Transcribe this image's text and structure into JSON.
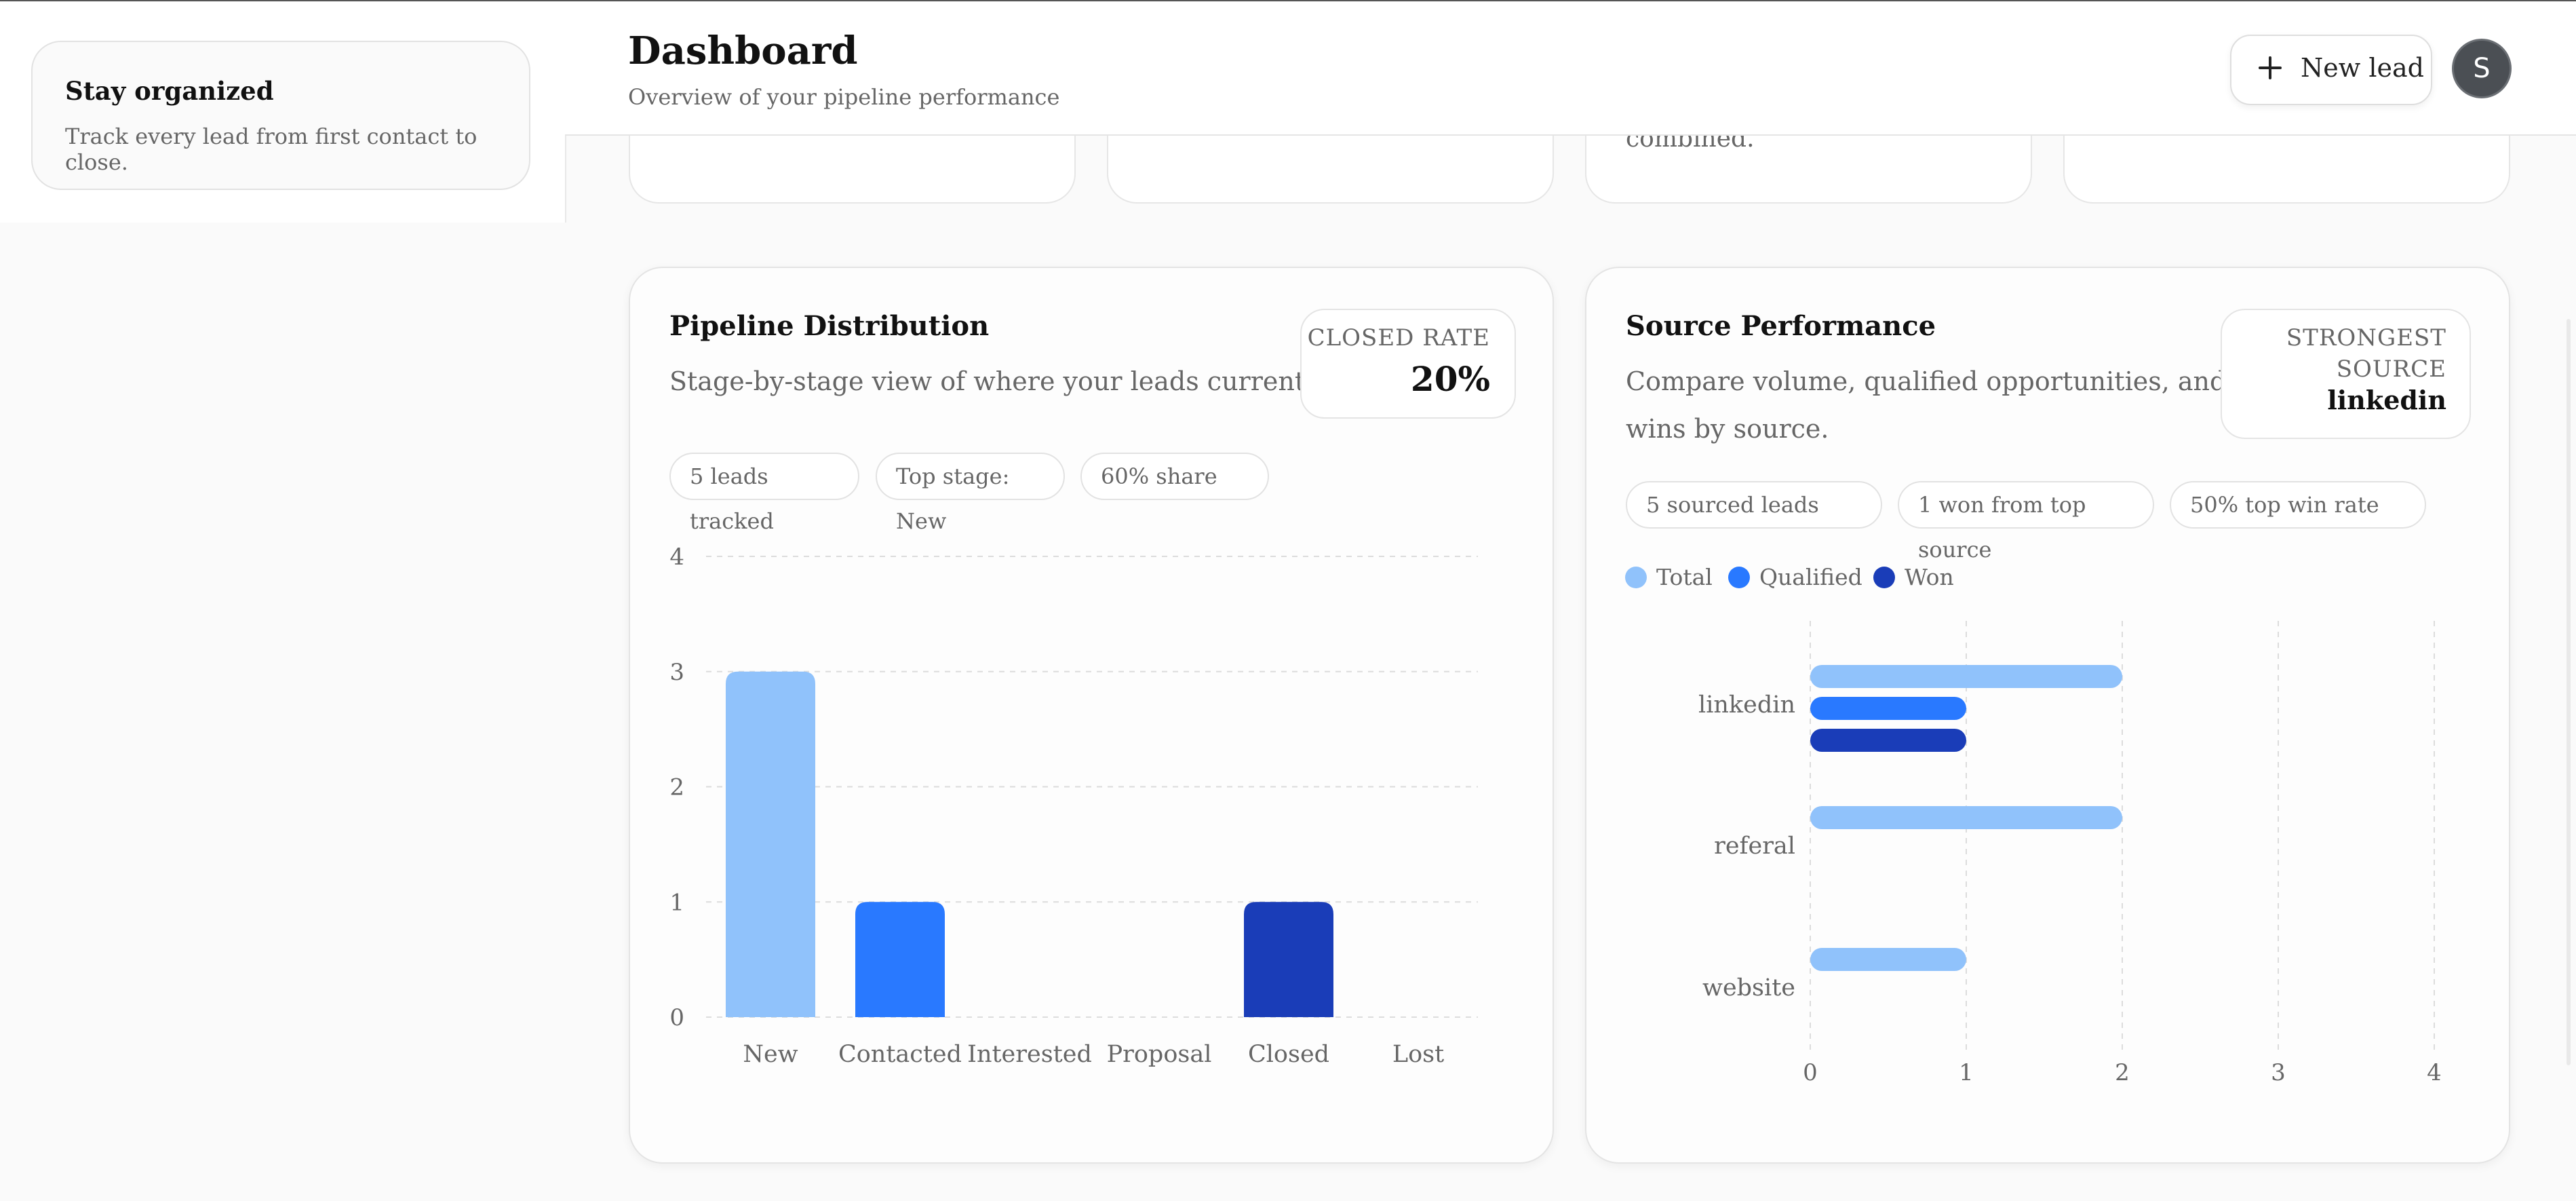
{
  "sidebar": {
    "card": {
      "title": "Stay organized",
      "subtitle": "Track every lead from first contact to close."
    }
  },
  "header": {
    "title": "Dashboard",
    "subtitle": "Overview of your pipeline performance",
    "new_lead_label": "New lead",
    "avatar_initial": "S"
  },
  "stat_cards": {
    "third_fragment": "combined."
  },
  "pipeline": {
    "title": "Pipeline Distribution",
    "subtitle": "Stage-by-stage view of where your leads currently sit.",
    "stat_label": "CLOSED RATE",
    "stat_value": "20%",
    "chips": [
      "5 leads tracked",
      "Top stage: New",
      "60% share"
    ]
  },
  "source": {
    "title": "Source Performance",
    "subtitle_line1": "Compare volume, qualified opportunities, and",
    "subtitle_line2": "wins by source.",
    "stat_label_line1": "STRONGEST",
    "stat_label_line2": "SOURCE",
    "stat_value": "linkedin",
    "chips": [
      "5 sourced leads",
      "1 won from top source",
      "50% top win rate"
    ],
    "legend": [
      "Total",
      "Qualified",
      "Won"
    ]
  },
  "colors": {
    "light_blue": "#90c2fb",
    "mid_blue": "#2979ff",
    "dark_blue": "#1a3db8"
  },
  "chart_data": [
    {
      "type": "bar",
      "title": "Pipeline Distribution",
      "categories": [
        "New",
        "Contacted",
        "Interested",
        "Proposal",
        "Closed",
        "Lost"
      ],
      "values": [
        3,
        1,
        0,
        0,
        1,
        0
      ],
      "bar_colors": [
        "#90c2fb",
        "#2979ff",
        "#2979ff",
        "#2979ff",
        "#1a3db8",
        "#1a3db8"
      ],
      "yticks": [
        0,
        1,
        2,
        3,
        4
      ],
      "ylim": [
        0,
        4
      ],
      "grid": true
    },
    {
      "type": "bar",
      "orientation": "horizontal",
      "title": "Source Performance",
      "categories": [
        "linkedin",
        "referal",
        "website"
      ],
      "series": [
        {
          "name": "Total",
          "values": [
            2,
            2,
            1
          ],
          "color": "#90c2fb"
        },
        {
          "name": "Qualified",
          "values": [
            1,
            0,
            0
          ],
          "color": "#2979ff"
        },
        {
          "name": "Won",
          "values": [
            1,
            0,
            0
          ],
          "color": "#1a3db8"
        }
      ],
      "xticks": [
        0,
        1,
        2,
        3,
        4
      ],
      "xlim": [
        0,
        4
      ],
      "grid": true,
      "legend": "top-left"
    }
  ]
}
